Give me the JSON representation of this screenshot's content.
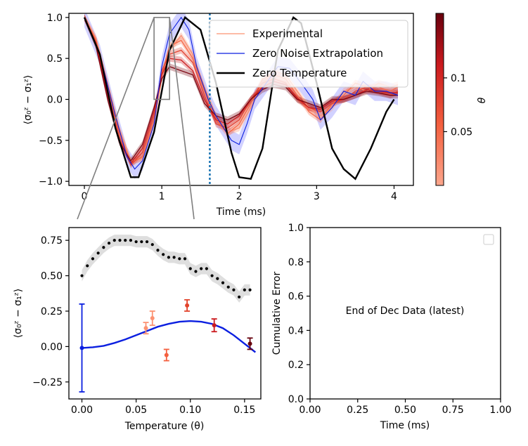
{
  "chart_data": [
    {
      "type": "line",
      "panel": "top",
      "xlabel": "Time (ms)",
      "ylabel": "⟨σ₀ᶻ − σ₁ᶻ⟩",
      "xlim": [
        -0.2,
        4.25
      ],
      "ylim": [
        -1.05,
        1.05
      ],
      "xticks": [
        0,
        1,
        2,
        3,
        4
      ],
      "yticks": [
        -1.0,
        -0.5,
        0.0,
        0.5,
        1.0
      ],
      "ytick_labels": [
        "−1.0",
        "−0.5",
        "0.0",
        "0.5",
        "1.0"
      ],
      "legend": {
        "placement": "upper-right",
        "entries": [
          "Experimental",
          "Zero Noise Extrapolation",
          "Zero Temperature"
        ]
      },
      "colorbar": {
        "label": "θ",
        "ticks": [
          0.05,
          0.1
        ],
        "tick_labels": [
          "0.05",
          "0.1"
        ],
        "range": [
          0.0,
          0.16
        ],
        "colormap": [
          "#fca68c",
          "#f4603f",
          "#cb1a1e",
          "#67000d"
        ]
      },
      "vline_x": 1.62,
      "vline_color": "#1f77b4",
      "zoom_box": {
        "x": [
          0.9,
          1.1
        ],
        "y": [
          0.0,
          1.0
        ]
      },
      "colors": {
        "zero_temperature": "#000000",
        "zne": "#0b1fe0",
        "zne_band": "#7b7bff"
      },
      "series": [
        {
          "name": "Zero Temperature",
          "x": [
            0,
            0.2,
            0.4,
            0.6,
            0.7,
            0.9,
            1.1,
            1.3,
            1.5,
            1.7,
            1.9,
            2.0,
            2.15,
            2.3,
            2.5,
            2.7,
            2.8,
            3.0,
            3.2,
            3.35,
            3.5,
            3.7,
            3.9,
            4.0
          ],
          "y": [
            1.0,
            0.55,
            -0.35,
            -0.95,
            -0.95,
            -0.4,
            0.6,
            1.0,
            0.85,
            0.2,
            -0.65,
            -0.95,
            -0.97,
            -0.6,
            0.6,
            1.0,
            0.93,
            0.2,
            -0.6,
            -0.85,
            -0.97,
            -0.6,
            -0.15,
            0.0
          ]
        },
        {
          "name": "Zero Noise Extrapolation",
          "x": [
            0,
            0.2,
            0.4,
            0.55,
            0.65,
            0.75,
            0.9,
            1.0,
            1.1,
            1.25,
            1.35,
            1.45,
            1.6,
            1.7,
            1.8,
            1.9,
            2.0,
            2.1,
            2.2,
            2.35,
            2.5,
            2.65,
            2.8,
            2.95,
            3.05,
            3.2,
            3.35,
            3.5,
            3.6,
            3.75,
            3.9,
            4.05
          ],
          "y": [
            1.0,
            0.55,
            -0.2,
            -0.7,
            -0.85,
            -0.75,
            -0.3,
            0.4,
            0.8,
            1.0,
            0.85,
            0.4,
            0.0,
            -0.2,
            -0.35,
            -0.5,
            -0.55,
            -0.3,
            0.0,
            0.2,
            0.4,
            0.38,
            0.2,
            0.0,
            -0.25,
            -0.1,
            0.1,
            0.05,
            0.22,
            0.1,
            0.1,
            0.05
          ],
          "band_halfwidth": 0.12
        },
        {
          "name": "Experimental",
          "theta": 0.02,
          "x": [
            0,
            0.15,
            0.3,
            0.45,
            0.6,
            0.75,
            0.9,
            1.0,
            1.1,
            1.25,
            1.4,
            1.55,
            1.7,
            1.85,
            2.0,
            2.15,
            2.3,
            2.45,
            2.6,
            2.75,
            2.9,
            3.05,
            3.2,
            3.35,
            3.5,
            3.65,
            3.8,
            3.95,
            4.05
          ],
          "y": [
            1.0,
            0.75,
            0.2,
            -0.35,
            -0.75,
            -0.72,
            -0.3,
            0.25,
            0.6,
            0.78,
            0.55,
            0.15,
            -0.2,
            -0.4,
            -0.35,
            -0.1,
            0.2,
            0.35,
            0.3,
            0.1,
            -0.1,
            -0.2,
            -0.1,
            0.1,
            0.15,
            0.1,
            0.2,
            0.15,
            0.18
          ]
        },
        {
          "name": "Experimental",
          "theta": 0.05,
          "x": [
            0,
            0.15,
            0.3,
            0.45,
            0.6,
            0.75,
            0.9,
            1.0,
            1.1,
            1.25,
            1.4,
            1.55,
            1.7,
            1.85,
            2.0,
            2.15,
            2.3,
            2.45,
            2.6,
            2.75,
            2.9,
            3.05,
            3.2,
            3.35,
            3.5,
            3.65,
            3.8,
            3.95,
            4.05
          ],
          "y": [
            1.0,
            0.72,
            0.15,
            -0.4,
            -0.78,
            -0.7,
            -0.25,
            0.3,
            0.65,
            0.72,
            0.5,
            0.1,
            -0.25,
            -0.42,
            -0.3,
            -0.05,
            0.25,
            0.3,
            0.25,
            0.05,
            -0.15,
            -0.25,
            -0.05,
            0.05,
            0.2,
            0.15,
            0.15,
            0.1,
            0.15
          ]
        },
        {
          "name": "Experimental",
          "theta": 0.08,
          "x": [
            0,
            0.15,
            0.3,
            0.45,
            0.6,
            0.75,
            0.9,
            1.0,
            1.1,
            1.25,
            1.4,
            1.55,
            1.7,
            1.85,
            2.0,
            2.15,
            2.3,
            2.45,
            2.6,
            2.75,
            2.9,
            3.05,
            3.2,
            3.35,
            3.5,
            3.65,
            3.8,
            3.95,
            4.05
          ],
          "y": [
            1.0,
            0.7,
            0.1,
            -0.45,
            -0.8,
            -0.65,
            -0.2,
            0.35,
            0.55,
            0.6,
            0.45,
            0.05,
            -0.3,
            -0.35,
            -0.25,
            0.0,
            0.2,
            0.25,
            0.2,
            0.0,
            -0.1,
            -0.15,
            -0.05,
            0.0,
            0.1,
            0.15,
            0.1,
            0.05,
            0.1
          ]
        },
        {
          "name": "Experimental",
          "theta": 0.11,
          "x": [
            0,
            0.15,
            0.3,
            0.45,
            0.6,
            0.75,
            0.9,
            1.0,
            1.1,
            1.25,
            1.4,
            1.55,
            1.7,
            1.85,
            2.0,
            2.15,
            2.3,
            2.45,
            2.6,
            2.75,
            2.9,
            3.05,
            3.2,
            3.35,
            3.5,
            3.65,
            3.8,
            3.95,
            4.05
          ],
          "y": [
            1.0,
            0.68,
            0.05,
            -0.5,
            -0.78,
            -0.6,
            -0.15,
            0.3,
            0.5,
            0.48,
            0.35,
            0.0,
            -0.25,
            -0.3,
            -0.2,
            0.0,
            0.15,
            0.22,
            0.18,
            0.02,
            -0.1,
            -0.12,
            -0.02,
            0.0,
            0.05,
            0.12,
            0.1,
            0.08,
            0.08
          ]
        },
        {
          "name": "Experimental",
          "theta": 0.15,
          "x": [
            0,
            0.15,
            0.3,
            0.45,
            0.6,
            0.75,
            0.9,
            1.0,
            1.1,
            1.25,
            1.4,
            1.55,
            1.7,
            1.85,
            2.0,
            2.15,
            2.3,
            2.45,
            2.6,
            2.75,
            2.9,
            3.05,
            3.2,
            3.35,
            3.5,
            3.65,
            3.8,
            3.95,
            4.05
          ],
          "y": [
            1.0,
            0.65,
            0.0,
            -0.52,
            -0.75,
            -0.55,
            -0.1,
            0.25,
            0.4,
            0.35,
            0.3,
            -0.05,
            -0.2,
            -0.25,
            -0.18,
            0.0,
            0.12,
            0.18,
            0.15,
            0.0,
            -0.05,
            -0.1,
            0.0,
            0.0,
            0.05,
            0.1,
            0.08,
            0.05,
            0.05
          ]
        }
      ]
    },
    {
      "type": "scatter",
      "panel": "bottom-left",
      "xlabel": "Temperature (θ)",
      "ylabel": "⟨σ₀ᶻ − σ₁ᶻ⟩",
      "xlim": [
        -0.012,
        0.165
      ],
      "ylim": [
        -0.37,
        0.84
      ],
      "xticks": [
        0.0,
        0.05,
        0.1,
        0.15
      ],
      "xtick_labels": [
        "0.00",
        "0.05",
        "0.10",
        "0.15"
      ],
      "yticks": [
        -0.25,
        0.0,
        0.25,
        0.5,
        0.75
      ],
      "ytick_labels": [
        "−0.25",
        "0.00",
        "0.25",
        "0.50",
        "0.75"
      ],
      "black_dots": {
        "x": [
          0.0,
          0.005,
          0.01,
          0.015,
          0.02,
          0.025,
          0.03,
          0.035,
          0.04,
          0.045,
          0.05,
          0.055,
          0.06,
          0.065,
          0.07,
          0.075,
          0.08,
          0.085,
          0.09,
          0.095,
          0.1,
          0.105,
          0.11,
          0.115,
          0.12,
          0.125,
          0.13,
          0.135,
          0.14,
          0.145,
          0.15,
          0.155
        ],
        "y": [
          0.5,
          0.57,
          0.62,
          0.66,
          0.7,
          0.73,
          0.75,
          0.75,
          0.75,
          0.75,
          0.74,
          0.74,
          0.74,
          0.72,
          0.68,
          0.65,
          0.63,
          0.63,
          0.62,
          0.62,
          0.55,
          0.53,
          0.55,
          0.55,
          0.5,
          0.48,
          0.45,
          0.42,
          0.4,
          0.35,
          0.4,
          0.4
        ],
        "band_halfwidth": 0.04
      },
      "fit_curve": {
        "x": [
          0.0,
          0.01,
          0.02,
          0.03,
          0.04,
          0.05,
          0.06,
          0.07,
          0.08,
          0.09,
          0.1,
          0.11,
          0.12,
          0.13,
          0.14,
          0.15,
          0.16
        ],
        "y": [
          -0.01,
          -0.005,
          0.005,
          0.025,
          0.05,
          0.08,
          0.11,
          0.14,
          0.16,
          0.175,
          0.18,
          0.175,
          0.16,
          0.13,
          0.08,
          0.02,
          -0.04
        ],
        "color": "#0b1fe0"
      },
      "points": [
        {
          "x": 0.0,
          "y": -0.01,
          "err": 0.31,
          "color": "#0b1fe0"
        },
        {
          "x": 0.059,
          "y": 0.13,
          "err": 0.04,
          "color": "#fc9272"
        },
        {
          "x": 0.065,
          "y": 0.2,
          "err": 0.05,
          "color": "#fc9272"
        },
        {
          "x": 0.078,
          "y": -0.06,
          "err": 0.04,
          "color": "#f4603f"
        },
        {
          "x": 0.097,
          "y": 0.29,
          "err": 0.04,
          "color": "#e2432b"
        },
        {
          "x": 0.122,
          "y": 0.15,
          "err": 0.045,
          "color": "#cb1a1e"
        },
        {
          "x": 0.155,
          "y": 0.02,
          "err": 0.04,
          "color": "#67000d"
        }
      ]
    },
    {
      "type": "line",
      "panel": "bottom-right",
      "xlabel": "Time (ms)",
      "ylabel": "Cumulative Error",
      "xlim": [
        0.0,
        1.0
      ],
      "ylim": [
        0.0,
        1.0
      ],
      "xticks": [
        0.0,
        0.25,
        0.5,
        0.75,
        1.0
      ],
      "xtick_labels": [
        "0.00",
        "0.25",
        "0.50",
        "0.75",
        "1.00"
      ],
      "yticks": [
        0.0,
        0.2,
        0.4,
        0.6,
        0.8,
        1.0
      ],
      "ytick_labels": [
        "0.0",
        "0.2",
        "0.4",
        "0.6",
        "0.8",
        "1.0"
      ],
      "annotation": "End of Dec Data (latest)",
      "legend": {
        "placement": "upper-right",
        "entries": []
      },
      "series": []
    }
  ]
}
